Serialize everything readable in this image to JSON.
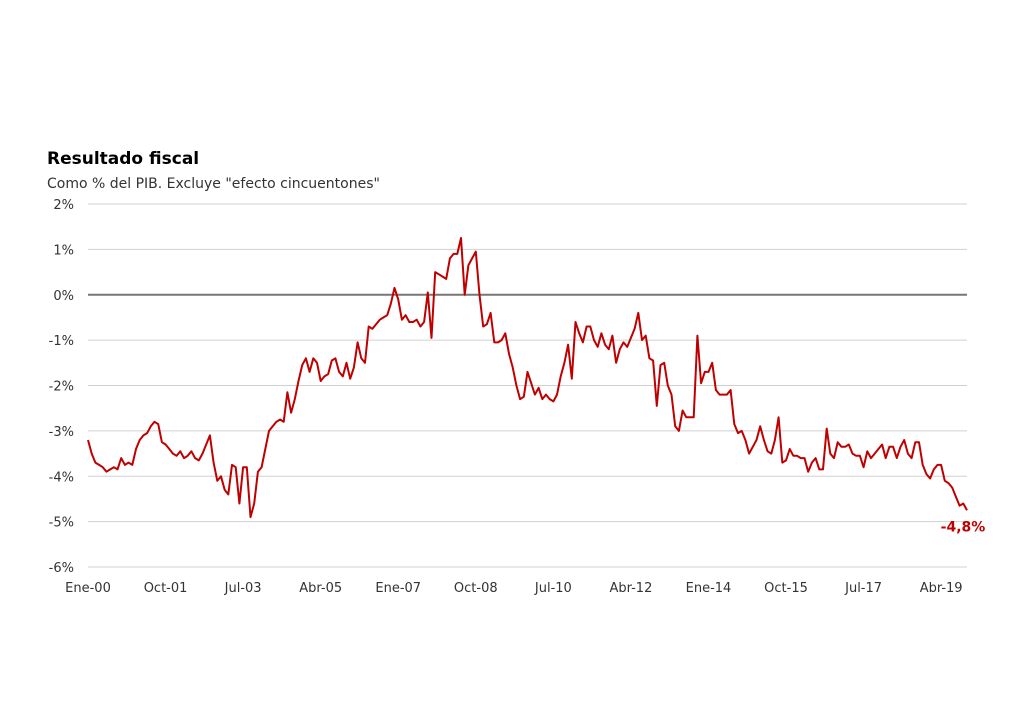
{
  "chart_data": {
    "type": "line",
    "title": "Resultado fiscal",
    "subtitle": "Como % del PIB. Excluye \"efecto cincuentones\"",
    "ylim": [
      -6,
      2
    ],
    "yticks": [
      2,
      1,
      0,
      -1,
      -2,
      -3,
      -4,
      -5,
      -6
    ],
    "ytick_labels": [
      "2%",
      "1%",
      "0%",
      "-1%",
      "-2%",
      "-3%",
      "-4%",
      "-5%",
      "-6%"
    ],
    "x_start": "2000-01",
    "x_end": "2019-04",
    "xtick_labels": [
      "Ene-00",
      "Oct-01",
      "Jul-03",
      "Abr-05",
      "Ene-07",
      "Oct-08",
      "Jul-10",
      "Abr-12",
      "Ene-14",
      "Oct-15",
      "Jul-17",
      "Abr-19"
    ],
    "grid": true,
    "series": [
      {
        "color": "#c00000",
        "frequency": "monthly",
        "values": [
          -3.2,
          -3.5,
          -3.7,
          -3.75,
          -3.8,
          -3.9,
          -3.85,
          -3.8,
          -3.85,
          -3.6,
          -3.75,
          -3.7,
          -3.75,
          -3.4,
          -3.2,
          -3.1,
          -3.05,
          -2.9,
          -2.8,
          -2.85,
          -3.25,
          -3.3,
          -3.4,
          -3.5,
          -3.55,
          -3.45,
          -3.6,
          -3.55,
          -3.45,
          -3.6,
          -3.65,
          -3.5,
          -3.3,
          -3.1,
          -3.7,
          -4.1,
          -4.0,
          -4.3,
          -4.4,
          -3.75,
          -3.8,
          -4.6,
          -3.8,
          -3.8,
          -4.9,
          -4.6,
          -3.9,
          -3.8,
          -3.4,
          -3.0,
          -2.9,
          -2.8,
          -2.75,
          -2.8,
          -2.15,
          -2.6,
          -2.3,
          -1.9,
          -1.55,
          -1.4,
          -1.7,
          -1.4,
          -1.5,
          -1.9,
          -1.8,
          -1.75,
          -1.45,
          -1.4,
          -1.7,
          -1.8,
          -1.5,
          -1.85,
          -1.6,
          -1.05,
          -1.4,
          -1.5,
          -0.7,
          -0.75,
          -0.65,
          -0.55,
          -0.5,
          -0.45,
          -0.2,
          0.15,
          -0.1,
          -0.55,
          -0.45,
          -0.6,
          -0.6,
          -0.55,
          -0.7,
          -0.6,
          0.05,
          -0.95,
          0.5,
          0.45,
          0.4,
          0.35,
          0.8,
          0.9,
          0.9,
          1.25,
          0.0,
          0.65,
          0.8,
          0.95,
          0.0,
          -0.7,
          -0.65,
          -0.4,
          -1.05,
          -1.05,
          -1.0,
          -0.85,
          -1.3,
          -1.6,
          -2.0,
          -2.3,
          -2.25,
          -1.7,
          -1.95,
          -2.2,
          -2.05,
          -2.3,
          -2.2,
          -2.3,
          -2.35,
          -2.2,
          -1.8,
          -1.5,
          -1.1,
          -1.85,
          -0.6,
          -0.85,
          -1.05,
          -0.7,
          -0.7,
          -1.0,
          -1.15,
          -0.85,
          -1.1,
          -1.2,
          -0.9,
          -1.5,
          -1.2,
          -1.05,
          -1.15,
          -0.95,
          -0.75,
          -0.4,
          -1.0,
          -0.9,
          -1.4,
          -1.45,
          -2.45,
          -1.55,
          -1.5,
          -2.0,
          -2.2,
          -2.9,
          -3.0,
          -2.55,
          -2.7,
          -2.7,
          -2.7,
          -0.9,
          -1.95,
          -1.7,
          -1.7,
          -1.5,
          -2.1,
          -2.2,
          -2.2,
          -2.2,
          -2.1,
          -2.85,
          -3.05,
          -3.0,
          -3.2,
          -3.5,
          -3.35,
          -3.2,
          -2.9,
          -3.2,
          -3.45,
          -3.5,
          -3.2,
          -2.7,
          -3.7,
          -3.65,
          -3.4,
          -3.55,
          -3.55,
          -3.6,
          -3.6,
          -3.9,
          -3.7,
          -3.6,
          -3.85,
          -3.85,
          -2.95,
          -3.5,
          -3.6,
          -3.25,
          -3.35,
          -3.35,
          -3.3,
          -3.5,
          -3.55,
          -3.55,
          -3.8,
          -3.45,
          -3.6,
          -3.5,
          -3.4,
          -3.3,
          -3.6,
          -3.35,
          -3.35,
          -3.6,
          -3.35,
          -3.2,
          -3.5,
          -3.6,
          -3.25,
          -3.25,
          -3.75,
          -3.95,
          -4.05,
          -3.85,
          -3.75,
          -3.75,
          -4.1,
          -4.15,
          -4.25,
          -4.45,
          -4.65,
          -4.6,
          -4.75
        ]
      }
    ],
    "end_label": "-4,8%",
    "end_label_color": "#c00000"
  }
}
